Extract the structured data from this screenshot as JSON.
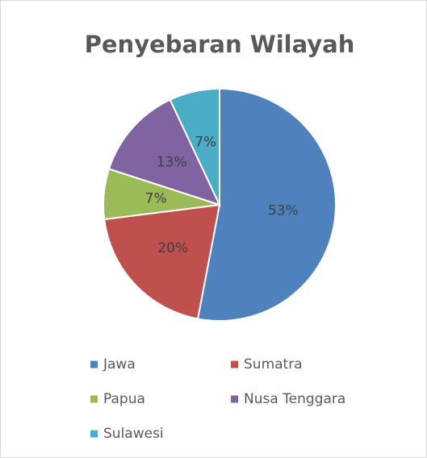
{
  "chart_data": {
    "type": "pie",
    "title": "Penyebaran Wilayah",
    "categories": [
      "Jawa",
      "Sumatra",
      "Papua",
      "Nusa Tenggara",
      "Sulawesi"
    ],
    "values": [
      53,
      20,
      7,
      13,
      7
    ],
    "value_labels": [
      "53%",
      "20%",
      "7%",
      "13%",
      "7%"
    ],
    "colors": [
      "#4f81bd",
      "#c0504d",
      "#9bbb59",
      "#8064a2",
      "#4bacc6"
    ],
    "legend": "bottom"
  }
}
